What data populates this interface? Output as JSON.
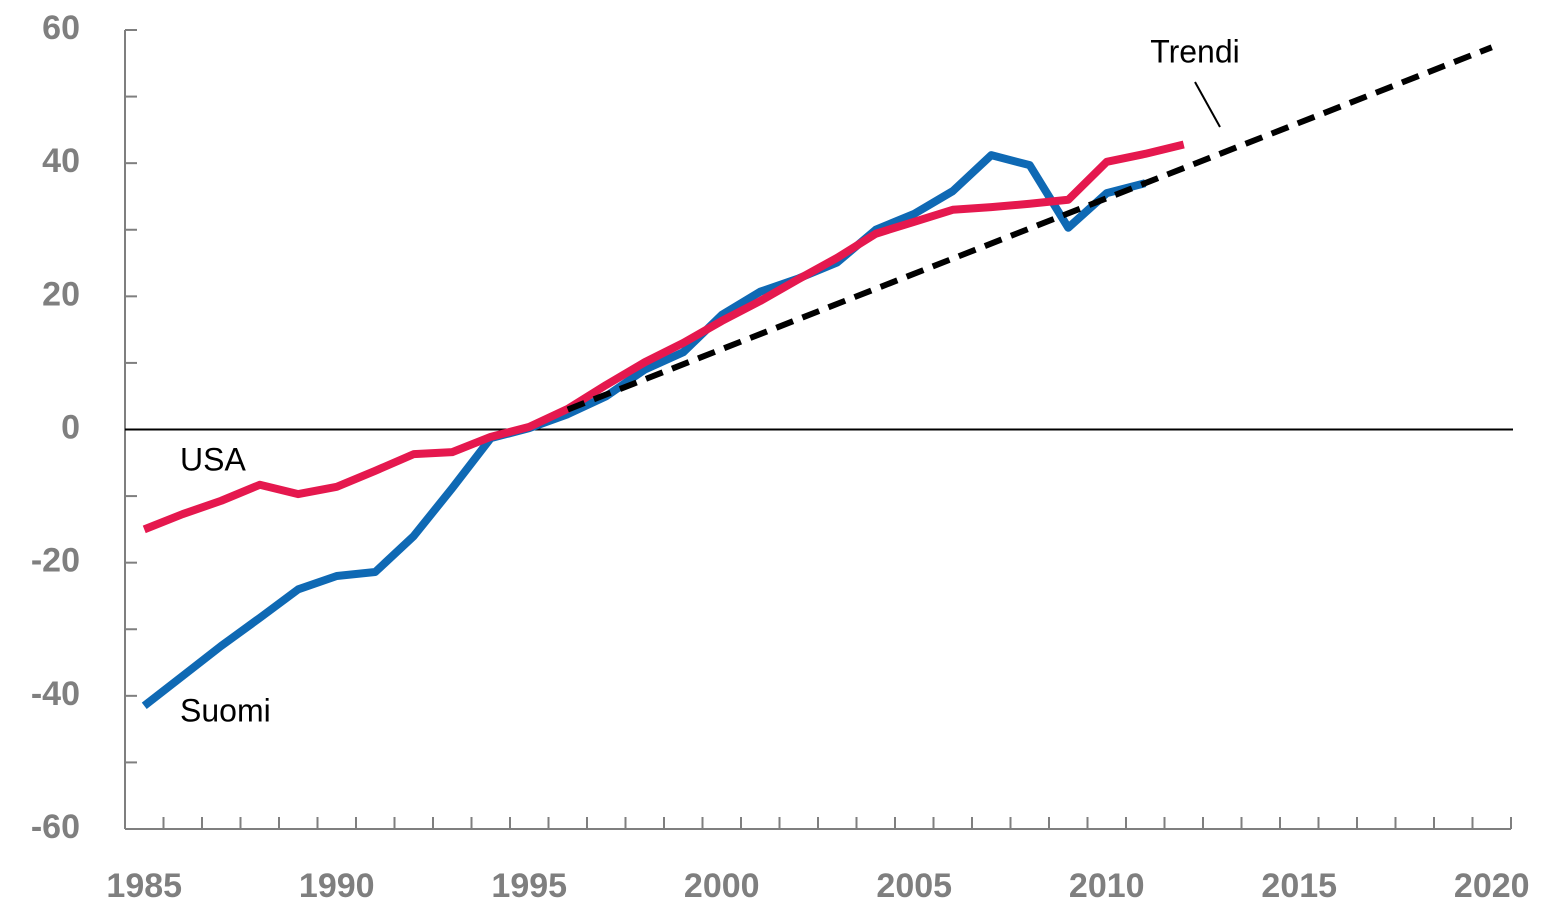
{
  "chart_data": {
    "type": "line",
    "xlim": [
      1984.5,
      2020.5
    ],
    "xticks": [
      1985,
      1990,
      1995,
      2000,
      2005,
      2010,
      2015,
      2020
    ],
    "ylim": [
      -60,
      60
    ],
    "yticks": [
      -60,
      -40,
      -20,
      0,
      20,
      40,
      60
    ],
    "series": [
      {
        "name": "Suomi",
        "color": "#0f69b4",
        "dashed": false,
        "x": [
          1985,
          1986,
          1987,
          1988,
          1989,
          1990,
          1991,
          1992,
          1993,
          1994,
          1995,
          1996,
          1997,
          1998,
          1999,
          2000,
          2001,
          2002,
          2003,
          2004,
          2005,
          2006,
          2007,
          2008,
          2009,
          2010,
          2011
        ],
        "values": [
          -41.5,
          -37,
          -32.5,
          -28.3,
          -24,
          -22,
          -21.4,
          -16,
          -8.8,
          -1.3,
          0.2,
          2.3,
          5,
          9,
          11.6,
          17.2,
          20.7,
          22.7,
          25.1,
          30,
          32.4,
          35.8,
          41.2,
          39.7,
          30.3,
          35.5,
          37
        ]
      },
      {
        "name": "USA",
        "color": "#e5184e",
        "dashed": false,
        "x": [
          1985,
          1986,
          1987,
          1988,
          1989,
          1990,
          1991,
          1992,
          1993,
          1994,
          1995,
          1996,
          1997,
          1998,
          1999,
          2000,
          2001,
          2002,
          2003,
          2004,
          2005,
          2006,
          2007,
          2008,
          2009,
          2010,
          2011,
          2012
        ],
        "values": [
          -15,
          -12.7,
          -10.7,
          -8.3,
          -9.7,
          -8.6,
          -6.2,
          -3.7,
          -3.4,
          -1.1,
          0.4,
          3.1,
          6.7,
          10.1,
          13,
          16.3,
          19.3,
          22.6,
          25.8,
          29.4,
          31.2,
          33,
          33.4,
          33.9,
          34.5,
          40.2,
          41.4,
          42.8
        ]
      },
      {
        "name": "Trendi",
        "color": "#000000",
        "dashed": true,
        "x": [
          1996,
          2020
        ],
        "values": [
          3,
          57.4
        ]
      }
    ]
  }
}
